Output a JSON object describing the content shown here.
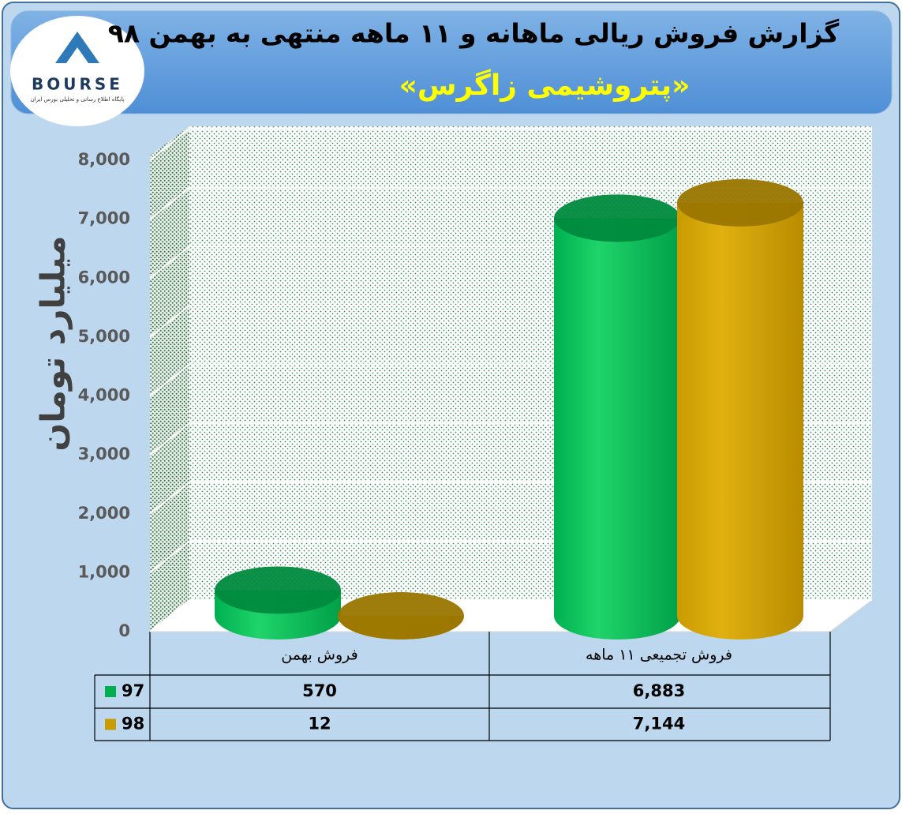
{
  "logo": {
    "brand": "BOURSE",
    "tagline": "پایگاه اطلاع رسانی و تحلیلی بورس ایران"
  },
  "chart_data": {
    "type": "bar",
    "title": "گزارش فروش ریالی ماهانه و ۱۱ ماهه منتهی به بهمن ۹۸",
    "subtitle": "«پتروشیمی زاگرس»",
    "y_label": "میلیارد تومان",
    "categories": [
      "فروش بهمن",
      "فروش تجمیعی ۱۱ ماهه"
    ],
    "series": [
      {
        "name": "97",
        "color": "#00b050",
        "values": [
          570,
          6883
        ],
        "value_labels": [
          "570",
          "6,883"
        ]
      },
      {
        "name": "98",
        "color": "#c89b00",
        "values": [
          12,
          7144
        ],
        "value_labels": [
          "12",
          "7,144"
        ]
      }
    ],
    "ylim": [
      0,
      8000
    ],
    "yticks": [
      0,
      {
        "value": 1000,
        "label": "1,000"
      },
      {
        "value": 2000,
        "label": "2,000"
      },
      {
        "value": 3000,
        "label": "3,000"
      },
      {
        "value": 4000,
        "label": "4,000"
      },
      {
        "value": 5000,
        "label": "5,000"
      },
      {
        "value": 6000,
        "label": "6,000"
      },
      {
        "value": 7000,
        "label": "7,000"
      },
      {
        "value": 8000,
        "label": "8,000"
      }
    ],
    "grid": true
  }
}
